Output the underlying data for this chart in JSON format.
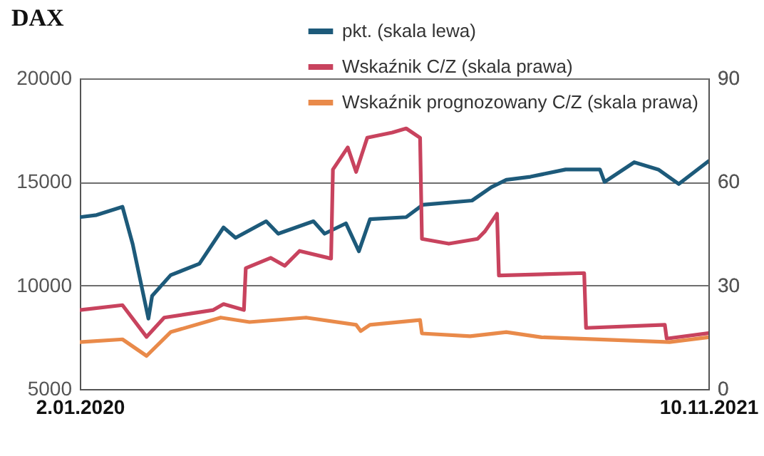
{
  "chart_data": {
    "type": "line",
    "title": "DAX",
    "xlim": [
      "2020-01-02",
      "2021-11-10"
    ],
    "xticks": [
      {
        "value": "2020-01-02",
        "label": "2.01.2020"
      },
      {
        "value": "2021-11-10",
        "label": "10.11.2021"
      }
    ],
    "ylim": [
      5000,
      20000
    ],
    "yticks": [
      5000,
      10000,
      15000,
      20000
    ],
    "y2lim": [
      0,
      90
    ],
    "y2ticks": [
      0,
      30,
      60,
      90
    ],
    "grid": "y",
    "legend": "top right",
    "series": [
      {
        "name": "pkt. (skala lewa)",
        "color": "#1d5a7a",
        "x": [
          "2020-01-02",
          "2020-01-20",
          "2020-02-17",
          "2020-02-28",
          "2020-03-16",
          "2020-03-20",
          "2020-04-09",
          "2020-05-10",
          "2020-06-05",
          "2020-06-18",
          "2020-07-21",
          "2020-08-03",
          "2020-09-10",
          "2020-09-22",
          "2020-10-15",
          "2020-10-29",
          "2020-11-10",
          "2020-12-19",
          "2021-01-06",
          "2021-02-28",
          "2021-03-21",
          "2021-04-06",
          "2021-05-02",
          "2021-06-09",
          "2021-07-16",
          "2021-07-21",
          "2021-08-22",
          "2021-09-17",
          "2021-10-09",
          "2021-11-10"
        ],
        "values": [
          13300,
          13400,
          13800,
          12000,
          8400,
          9500,
          10500,
          11050,
          12800,
          12300,
          13100,
          12500,
          13100,
          12500,
          13000,
          11650,
          13200,
          13300,
          13900,
          14100,
          14750,
          15100,
          15250,
          15600,
          15600,
          15000,
          15950,
          15600,
          14900,
          16000
        ]
      },
      {
        "name": "Wskaźnik C/Z (skala prawa)",
        "color": "#c8435e",
        "axis": "y2",
        "x": [
          "2020-01-02",
          "2020-02-17",
          "2020-03-14",
          "2020-04-02",
          "2020-05-25",
          "2020-06-05",
          "2020-06-27",
          "2020-06-29",
          "2020-07-26",
          "2020-08-10",
          "2020-08-26",
          "2020-09-29",
          "2020-10-01",
          "2020-10-17",
          "2020-10-26",
          "2020-11-07",
          "2020-12-04",
          "2020-12-19",
          "2021-01-03",
          "2021-01-05",
          "2021-02-03",
          "2021-03-06",
          "2021-03-14",
          "2021-03-27",
          "2021-03-29",
          "2021-06-29",
          "2021-07-01",
          "2021-09-24",
          "2021-09-26",
          "2021-11-10"
        ],
        "values": [
          22.9,
          24.3,
          15.1,
          20.7,
          22.9,
          24.6,
          22.9,
          35,
          38,
          35.7,
          40,
          37.8,
          63.6,
          70,
          62.9,
          72.8,
          74.3,
          75.5,
          72.8,
          43.5,
          42.1,
          43.5,
          45.7,
          50.8,
          32.9,
          33.6,
          17.7,
          18.6,
          14.6,
          16.2
        ]
      },
      {
        "name": "Wskaźnik prognozowany C/Z (skala prawa)",
        "color": "#e98a4a",
        "axis": "y2",
        "x": [
          "2020-01-02",
          "2020-02-17",
          "2020-03-14",
          "2020-04-09",
          "2020-06-02",
          "2020-07-03",
          "2020-09-02",
          "2020-10-26",
          "2020-10-31",
          "2020-11-10",
          "2021-01-03",
          "2021-01-05",
          "2021-02-26",
          "2021-04-06",
          "2021-05-14",
          "2021-09-29",
          "2021-11-10"
        ],
        "values": [
          13.6,
          14.4,
          9.6,
          16.5,
          20.7,
          19.4,
          20.7,
          18.6,
          16.8,
          18.6,
          20,
          16.1,
          15.3,
          16.5,
          15,
          13.6,
          15
        ]
      }
    ]
  }
}
